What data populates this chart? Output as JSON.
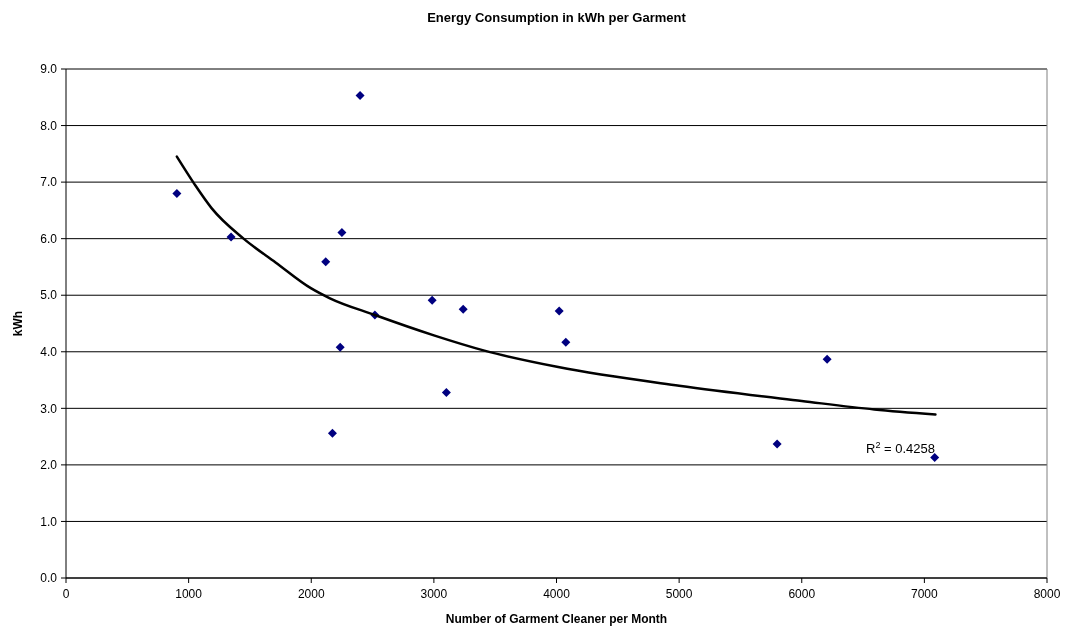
{
  "chart_data": {
    "type": "scatter",
    "title": "Energy Consumption in kWh per Garment",
    "xlabel": "Number of Garment Cleaner per Month",
    "ylabel": "kWh",
    "xlim": [
      0,
      8000
    ],
    "xticks": [
      0,
      1000,
      2000,
      3000,
      4000,
      5000,
      6000,
      7000,
      8000
    ],
    "ylim": [
      0,
      9
    ],
    "yticks": [
      {
        "value": 0,
        "label": "0.0"
      },
      {
        "value": 1,
        "label": "1.0"
      },
      {
        "value": 2,
        "label": "2.0"
      },
      {
        "value": 3,
        "label": "3.0"
      },
      {
        "value": 4,
        "label": "4.0"
      },
      {
        "value": 5,
        "label": "5.0"
      },
      {
        "value": 6,
        "label": "6.0"
      },
      {
        "value": 7,
        "label": "7.0"
      },
      {
        "value": 8,
        "label": "8.0"
      },
      {
        "value": 9,
        "label": "9.0"
      }
    ],
    "grid": "y",
    "series": [
      {
        "marker": "diamond",
        "color": "#000080",
        "x": [
          904,
          1346,
          2398,
          2250,
          2118,
          2519,
          2236,
          2173,
          2986,
          3239,
          3102,
          4022,
          4076,
          6207,
          5799,
          7084
        ],
        "values": [
          6.8,
          6.03,
          8.53,
          6.11,
          5.59,
          4.65,
          4.08,
          2.56,
          4.91,
          4.75,
          3.28,
          4.72,
          4.17,
          3.87,
          2.37,
          2.13
        ]
      },
      {
        "type": "line",
        "marker": "none",
        "line_style": "solid",
        "color": "#000000",
        "x": [
          904,
          1049,
          1187,
          1448,
          1709,
          2000,
          2148,
          2519,
          3000,
          3412,
          4014,
          5000,
          6000,
          6592,
          7090
        ],
        "values": [
          7.45,
          6.96,
          6.54,
          6.0,
          5.58,
          5.12,
          4.95,
          4.65,
          4.29,
          4.02,
          3.73,
          3.4,
          3.13,
          2.98,
          2.89
        ]
      }
    ],
    "annotations": [
      "R$^{2}$ = 0.4258"
    ]
  }
}
